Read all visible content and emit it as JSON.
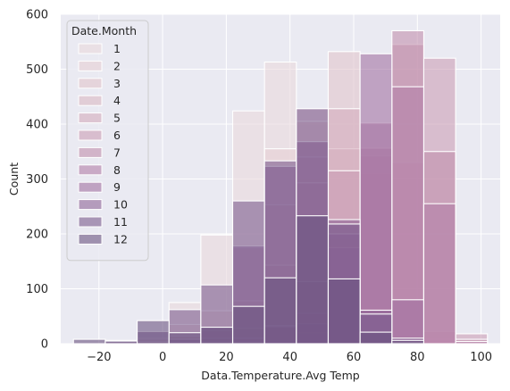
{
  "chart_data": {
    "type": "histogram",
    "xlabel": "Data.Temperature.Avg Temp",
    "ylabel": "Count",
    "xlim": [
      -32,
      106
    ],
    "ylim": [
      0,
      600
    ],
    "x_ticks": [
      -20,
      0,
      20,
      40,
      60,
      80,
      100
    ],
    "x_tick_labels": [
      "−20",
      "0",
      "20",
      "40",
      "60",
      "80",
      "100"
    ],
    "y_ticks": [
      0,
      100,
      200,
      300,
      400,
      500,
      600
    ],
    "y_tick_labels": [
      "0",
      "100",
      "200",
      "300",
      "400",
      "500",
      "600"
    ],
    "grid": true,
    "background": "#eaeaf2",
    "legend": {
      "title": "Date.Month",
      "placement": "upper-left"
    },
    "bins": [
      -28,
      -18,
      -8,
      2,
      12,
      22,
      32,
      42,
      52,
      62,
      72,
      82,
      92,
      102
    ],
    "series": [
      {
        "name": "1",
        "color": "#ead9dc",
        "opacity": 0.6,
        "counts": [
          0,
          6,
          10,
          75,
          198,
          424,
          513,
          300,
          190,
          52,
          18,
          5,
          0
        ]
      },
      {
        "name": "2",
        "color": "#e6cfd3",
        "opacity": 0.6,
        "counts": [
          0,
          3,
          8,
          35,
          60,
          175,
          355,
          428,
          213,
          50,
          14,
          3,
          0
        ]
      },
      {
        "name": "3",
        "color": "#e1c4cb",
        "opacity": 0.6,
        "counts": [
          0,
          0,
          4,
          14,
          24,
          78,
          253,
          405,
          532,
          68,
          30,
          6,
          0
        ]
      },
      {
        "name": "4",
        "color": "#dbb9c3",
        "opacity": 0.6,
        "counts": [
          0,
          0,
          0,
          4,
          10,
          28,
          143,
          340,
          355,
          310,
          60,
          8,
          0
        ]
      },
      {
        "name": "5",
        "color": "#d4acbc",
        "opacity": 0.6,
        "counts": [
          0,
          0,
          0,
          1,
          3,
          10,
          33,
          293,
          428,
          310,
          330,
          22,
          0
        ]
      },
      {
        "name": "6",
        "color": "#cc9fb5",
        "opacity": 0.6,
        "counts": [
          0,
          0,
          0,
          0,
          0,
          1,
          5,
          55,
          315,
          342,
          545,
          520,
          18
        ]
      },
      {
        "name": "7",
        "color": "#c18fae",
        "opacity": 0.6,
        "counts": [
          0,
          0,
          0,
          0,
          0,
          0,
          2,
          20,
          113,
          356,
          570,
          350,
          8
        ]
      },
      {
        "name": "8",
        "color": "#b27ea8",
        "opacity": 0.6,
        "counts": [
          0,
          0,
          0,
          0,
          0,
          0,
          3,
          36,
          175,
          402,
          468,
          255,
          4
        ]
      },
      {
        "name": "9",
        "color": "#a271a1",
        "opacity": 0.6,
        "counts": [
          0,
          0,
          0,
          0,
          0,
          3,
          31,
          113,
          200,
          528,
          80,
          0,
          0
        ]
      },
      {
        "name": "10",
        "color": "#8f6598",
        "opacity": 0.6,
        "counts": [
          0,
          0,
          0,
          8,
          30,
          178,
          323,
          368,
          226,
          61,
          2,
          0,
          0
        ]
      },
      {
        "name": "11",
        "color": "#7c5b8d",
        "opacity": 0.6,
        "counts": [
          0,
          4,
          22,
          62,
          107,
          260,
          333,
          428,
          218,
          54,
          10,
          0,
          0
        ]
      },
      {
        "name": "12",
        "color": "#6a5380",
        "opacity": 0.6,
        "counts": [
          8,
          5,
          42,
          20,
          30,
          68,
          120,
          233,
          118,
          21,
          6,
          0,
          0
        ]
      }
    ]
  }
}
